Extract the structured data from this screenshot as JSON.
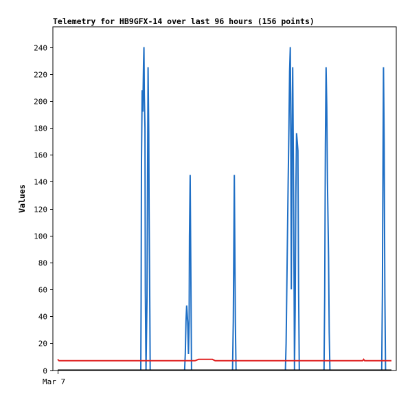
{
  "chart_data": {
    "type": "line",
    "title": "Telemetry for HB9GFX-14 over last 96 hours (156 points)",
    "xlabel": "",
    "ylabel": "Values",
    "ylim": [
      0,
      255
    ],
    "yticks": [
      0,
      20,
      40,
      60,
      80,
      100,
      120,
      140,
      160,
      180,
      200,
      220,
      240
    ],
    "xlim": [
      0,
      96
    ],
    "xticks": [
      {
        "x": 0,
        "label": "Mar 7"
      }
    ],
    "x_unit": "hours",
    "grid": false,
    "legend": "none",
    "series": [
      {
        "color": "#1f6fc5",
        "points": [
          [
            0,
            0
          ],
          [
            23.9,
            0
          ],
          [
            24.0,
            52
          ],
          [
            24.1,
            155
          ],
          [
            24.3,
            208
          ],
          [
            24.5,
            192
          ],
          [
            24.7,
            228
          ],
          [
            24.8,
            240
          ],
          [
            24.9,
            205
          ],
          [
            25.1,
            180
          ],
          [
            25.2,
            60
          ],
          [
            25.4,
            0
          ],
          [
            25.7,
            55
          ],
          [
            25.9,
            168
          ],
          [
            26.0,
            225
          ],
          [
            26.2,
            176
          ],
          [
            26.3,
            120
          ],
          [
            26.5,
            42
          ],
          [
            26.6,
            0
          ],
          [
            36.5,
            0
          ],
          [
            36.7,
            12
          ],
          [
            36.9,
            36
          ],
          [
            37.1,
            48
          ],
          [
            37.4,
            36
          ],
          [
            37.6,
            12
          ],
          [
            37.8,
            36
          ],
          [
            37.9,
            100
          ],
          [
            38.1,
            145
          ],
          [
            38.2,
            108
          ],
          [
            38.4,
            36
          ],
          [
            38.5,
            0
          ],
          [
            50.3,
            0
          ],
          [
            50.5,
            36
          ],
          [
            50.7,
            108
          ],
          [
            50.8,
            145
          ],
          [
            50.9,
            108
          ],
          [
            51.1,
            36
          ],
          [
            51.3,
            0
          ],
          [
            65.5,
            0
          ],
          [
            65.7,
            20
          ],
          [
            65.9,
            60
          ],
          [
            66.1,
            100
          ],
          [
            66.3,
            140
          ],
          [
            66.5,
            180
          ],
          [
            66.7,
            222
          ],
          [
            66.9,
            240
          ],
          [
            67.0,
            205
          ],
          [
            67.2,
            60
          ],
          [
            67.4,
            168
          ],
          [
            67.6,
            225
          ],
          [
            67.8,
            155
          ],
          [
            68.0,
            57
          ],
          [
            68.1,
            0
          ],
          [
            68.3,
            45
          ],
          [
            68.5,
            130
          ],
          [
            68.7,
            176
          ],
          [
            68.9,
            170
          ],
          [
            69.1,
            163
          ],
          [
            69.3,
            60
          ],
          [
            69.5,
            0
          ],
          [
            76.6,
            0
          ],
          [
            76.8,
            55
          ],
          [
            77.0,
            168
          ],
          [
            77.2,
            225
          ],
          [
            77.4,
            196
          ],
          [
            77.6,
            140
          ],
          [
            77.9,
            84
          ],
          [
            78.1,
            28
          ],
          [
            78.3,
            0
          ],
          [
            93.2,
            0
          ],
          [
            93.4,
            56
          ],
          [
            93.6,
            168
          ],
          [
            93.7,
            225
          ],
          [
            93.9,
            168
          ],
          [
            94.1,
            56
          ],
          [
            94.3,
            0
          ],
          [
            95.5,
            0
          ]
        ]
      },
      {
        "color": "#e02020",
        "points": [
          [
            0,
            8
          ],
          [
            0.4,
            7
          ],
          [
            39.5,
            7
          ],
          [
            40.5,
            8
          ],
          [
            44.5,
            8
          ],
          [
            45.3,
            7
          ],
          [
            87.7,
            7
          ],
          [
            88.0,
            8
          ],
          [
            88.3,
            7
          ],
          [
            96,
            7
          ]
        ]
      },
      {
        "color": "#000000",
        "points": [
          [
            0,
            0
          ],
          [
            96,
            0
          ]
        ]
      }
    ]
  }
}
